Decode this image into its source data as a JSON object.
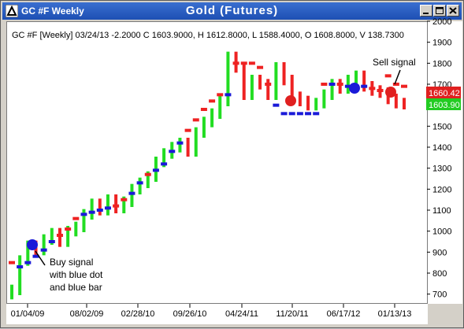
{
  "window": {
    "title": "GC #F Weekly",
    "chart_title": "Gold (Futures)"
  },
  "header_line": "GC #F [Weekly] 03/24/13  -2.2000 C 1603.9000, H 1612.8000, L 1588.4000, O 1608.8000, V 138.7300",
  "annotations": {
    "buy_l1": "Buy signal",
    "buy_l2": "with blue dot",
    "buy_l3": "and blue bar",
    "sell": "Sell signal"
  },
  "price_tags": {
    "red": "1660.42",
    "green": "1603.90"
  },
  "colors": {
    "up": "#22dd22",
    "down": "#ee2222",
    "trend": "#1a1ad8",
    "red_tag": "#e02020",
    "green_tag": "#22cc22"
  },
  "chart_data": {
    "type": "bar",
    "ylim": [
      650,
      2000
    ],
    "y_ticks": [
      700,
      800,
      900,
      1000,
      1100,
      1200,
      1300,
      1400,
      1500,
      1600,
      1700,
      1800,
      1900,
      2000
    ],
    "x_ticks": [
      "01/04/09",
      "08/02/09",
      "02/28/10",
      "09/26/10",
      "04/24/11",
      "11/20/11",
      "06/17/12",
      "01/13/13"
    ],
    "series": [
      {
        "values": [
          720,
          860,
          930,
          910,
          960,
          990,
          950,
          1000,
          1020,
          1080,
          1130,
          1100,
          1150,
          1110,
          1140,
          1200,
          1230,
          1260,
          1330,
          1370,
          1400,
          1420,
          1380,
          1470,
          1520,
          1560,
          1620,
          1830,
          1780,
          1650,
          1720,
          1700,
          1650,
          1780,
          1720,
          1640,
          1620,
          1600,
          1610,
          1650,
          1700,
          1680,
          1720,
          1740,
          1690,
          1670,
          1660,
          1630,
          1610,
          1605
        ]
      },
      {
        "values": [
          850,
          830,
          850,
          880,
          910,
          950,
          980,
          1010,
          1060,
          1080,
          1090,
          1100,
          1110,
          1120,
          1150,
          1180,
          1230,
          1270,
          1290,
          1320,
          1380,
          1420,
          1480,
          1530,
          1580,
          1620,
          1650,
          1650,
          1800,
          1800,
          1800,
          1780,
          1700,
          1600,
          1560,
          1560,
          1560,
          1560,
          1560,
          1700,
          1700,
          1700,
          1690,
          1690,
          1690,
          1680,
          1670,
          1740,
          1700,
          1690
        ]
      }
    ]
  }
}
